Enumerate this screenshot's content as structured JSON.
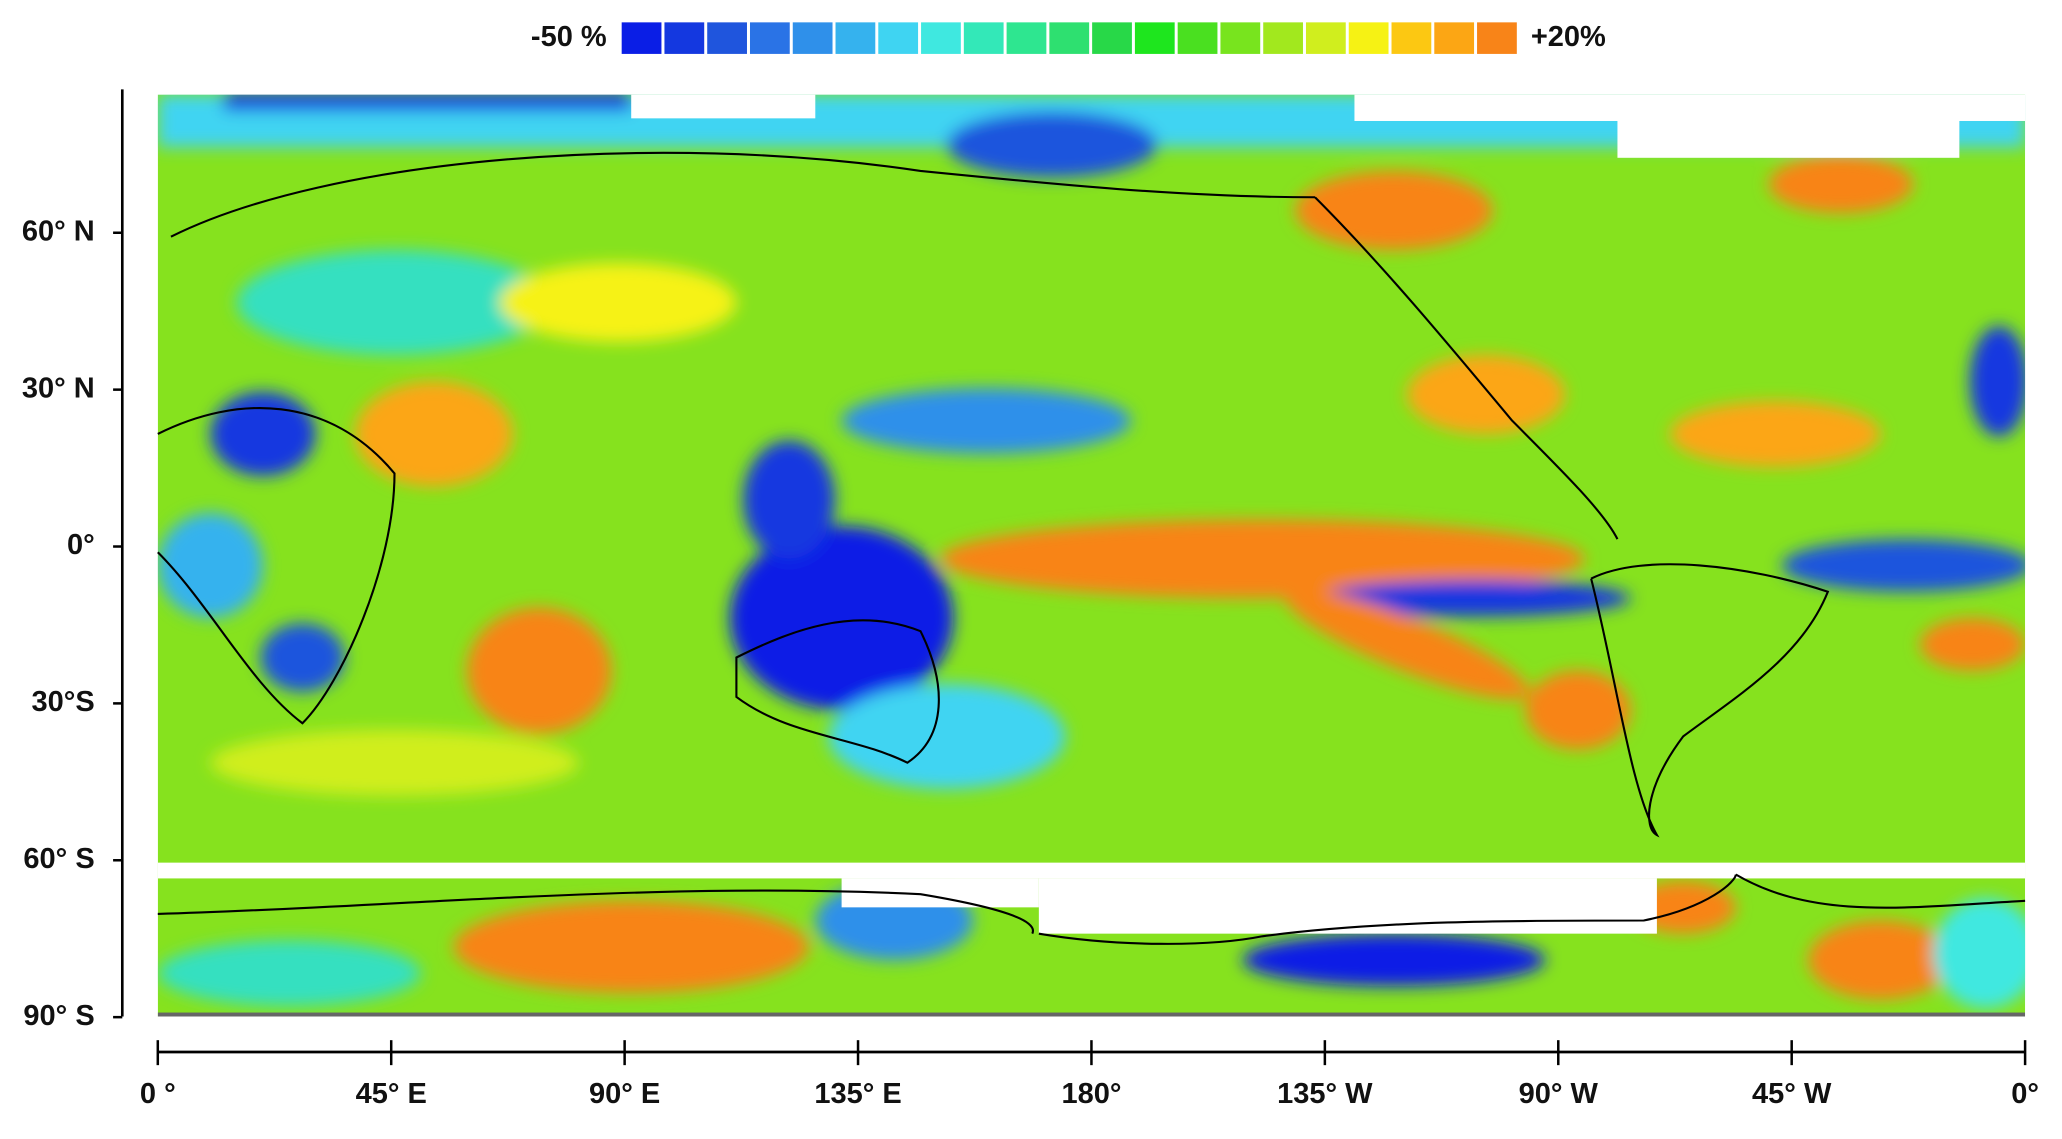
{
  "legend": {
    "min_label": "-50 %",
    "max_label": "+20%",
    "colors": [
      "#0a1ee6",
      "#1438e0",
      "#1f55dd",
      "#2a73e6",
      "#2f90ea",
      "#35b2ee",
      "#3fd4f2",
      "#3fe8e0",
      "#33e8b8",
      "#2ee690",
      "#2ee070",
      "#28d848",
      "#1ee61e",
      "#4ae020",
      "#78e41e",
      "#a2e81e",
      "#d0ee1e",
      "#f6f214",
      "#fcc812",
      "#fca614",
      "#f88418"
    ]
  },
  "axes": {
    "lat_labels": [
      "60° N",
      "30° N",
      "0°",
      "30°S",
      "60° S",
      "90° S"
    ],
    "lon_labels": [
      "0 °",
      "45° E",
      "90° E",
      "135° E",
      "180°",
      "135° W",
      "90° W",
      "45° W",
      "0°"
    ]
  }
}
